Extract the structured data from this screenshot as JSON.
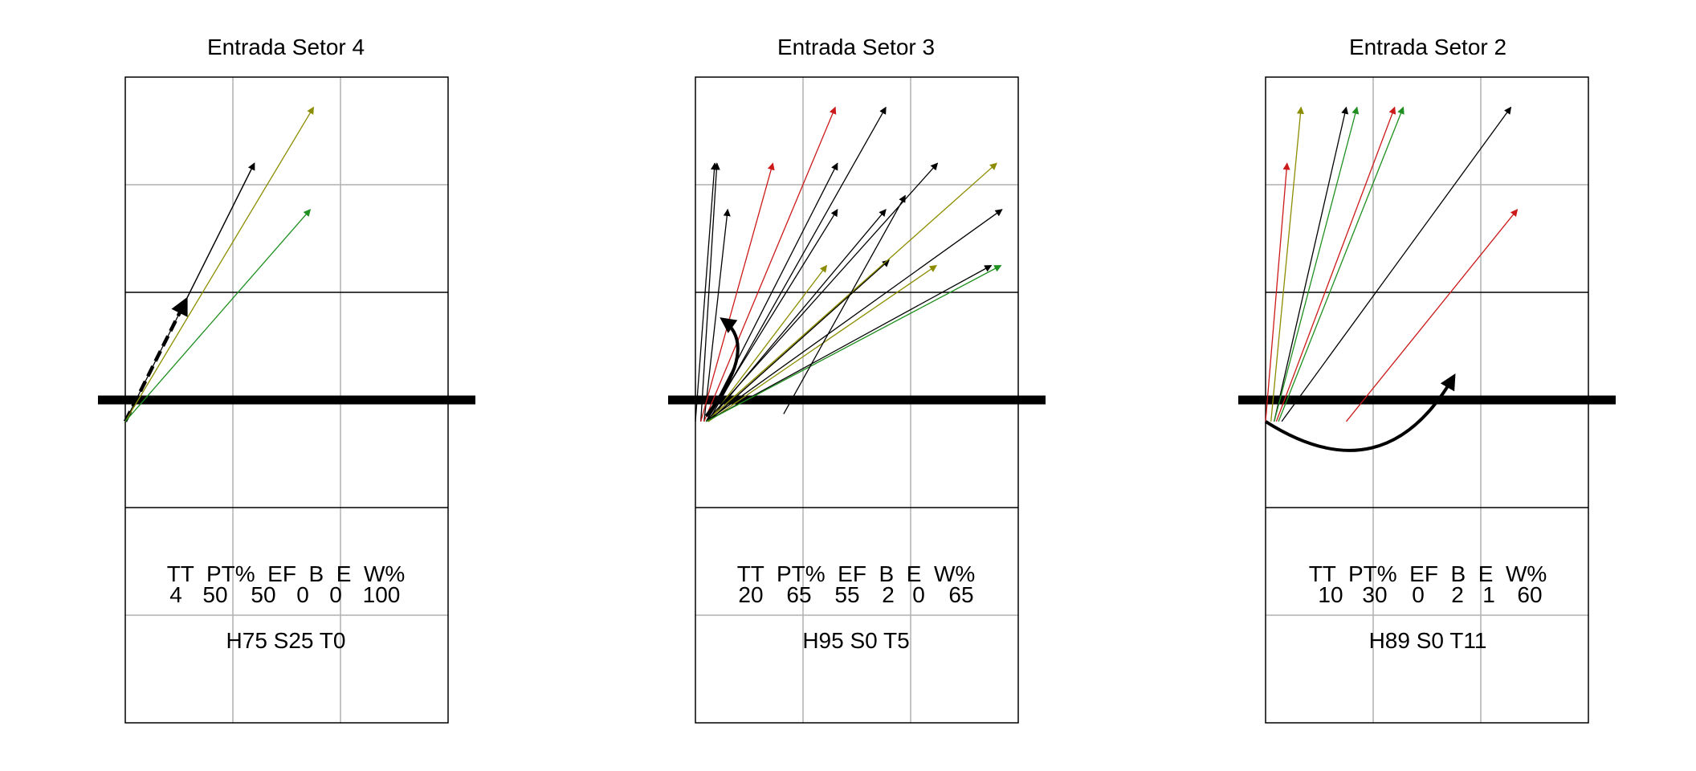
{
  "colors": {
    "black": "#000000",
    "red": "#cc1a1a",
    "olive": "#8c8c00",
    "green": "#1f8f1f",
    "grid": "#b0b0b0"
  },
  "panels": [
    {
      "title": "Entrada Setor 4",
      "stats_header": "TT  PT%  EF  B  E  W%",
      "stats_values": [
        "4",
        "50",
        "50",
        "0",
        "0",
        "100"
      ],
      "summary": "H75 S25 T0",
      "arrows": [
        {
          "x1": 0.0,
          "y1": -0.2,
          "x2": 1.2,
          "y2": 2.2,
          "color": "black",
          "style": "dashed"
        },
        {
          "x1": 0.0,
          "y1": -0.2,
          "x2": 1.2,
          "y2": 2.2,
          "color": "black",
          "style": "thin",
          "from_dash_end": true
        },
        {
          "x1": 0.0,
          "y1": -0.2,
          "x2": 1.2,
          "y2": 2.2,
          "color": "black",
          "style": "thin"
        },
        {
          "x1": 0.0,
          "y1": -0.2,
          "x2": 1.75,
          "y2": 2.72,
          "color": "olive",
          "style": "thin"
        },
        {
          "x1": 0.0,
          "y1": -0.2,
          "x2": 1.72,
          "y2": 1.77,
          "color": "green",
          "style": "thin"
        }
      ],
      "curve": null
    },
    {
      "title": "Entrada Setor 3",
      "stats_header": "TT  PT%  EF  B  E  W%",
      "stats_values": [
        "20",
        "65",
        "55",
        "2",
        "0",
        "65"
      ],
      "summary": "H95 S0 T5",
      "arrows": [
        {
          "x1": 0.0,
          "y1": -0.2,
          "x2": 0.18,
          "y2": 2.2,
          "color": "black",
          "style": "thin"
        },
        {
          "x1": 0.05,
          "y1": -0.2,
          "x2": 0.2,
          "y2": 2.2,
          "color": "black",
          "style": "thin"
        },
        {
          "x1": 0.08,
          "y1": -0.2,
          "x2": 0.3,
          "y2": 1.77,
          "color": "black",
          "style": "thin"
        },
        {
          "x1": 0.05,
          "y1": -0.2,
          "x2": 0.72,
          "y2": 2.2,
          "color": "red",
          "style": "thin"
        },
        {
          "x1": 0.08,
          "y1": -0.2,
          "x2": 1.3,
          "y2": 2.72,
          "color": "red",
          "style": "thin"
        },
        {
          "x1": 0.1,
          "y1": -0.2,
          "x2": 1.32,
          "y2": 2.2,
          "color": "black",
          "style": "thin"
        },
        {
          "x1": 0.1,
          "y1": -0.2,
          "x2": 1.32,
          "y2": 1.77,
          "color": "black",
          "style": "thin"
        },
        {
          "x1": 0.12,
          "y1": -0.2,
          "x2": 1.77,
          "y2": 2.72,
          "color": "black",
          "style": "thin"
        },
        {
          "x1": 0.12,
          "y1": -0.2,
          "x2": 1.77,
          "y2": 1.77,
          "color": "black",
          "style": "thin"
        },
        {
          "x1": 0.12,
          "y1": -0.2,
          "x2": 1.22,
          "y2": 1.25,
          "color": "olive",
          "style": "thin"
        },
        {
          "x1": 0.12,
          "y1": -0.2,
          "x2": 1.8,
          "y2": 1.3,
          "color": "olive",
          "style": "thin"
        },
        {
          "x1": 0.12,
          "y1": -0.2,
          "x2": 1.8,
          "y2": 1.3,
          "color": "black",
          "style": "thin"
        },
        {
          "x1": 0.12,
          "y1": -0.2,
          "x2": 2.24,
          "y2": 1.25,
          "color": "olive",
          "style": "thin"
        },
        {
          "x1": 0.1,
          "y1": -0.2,
          "x2": 2.8,
          "y2": 2.2,
          "color": "olive",
          "style": "thin"
        },
        {
          "x1": 0.1,
          "y1": -0.2,
          "x2": 2.25,
          "y2": 2.2,
          "color": "black",
          "style": "thin"
        },
        {
          "x1": 0.1,
          "y1": -0.2,
          "x2": 2.85,
          "y2": 1.77,
          "color": "black",
          "style": "thin"
        },
        {
          "x1": 0.1,
          "y1": -0.2,
          "x2": 2.75,
          "y2": 1.25,
          "color": "black",
          "style": "thin"
        },
        {
          "x1": 0.1,
          "y1": -0.2,
          "x2": 2.84,
          "y2": 1.25,
          "color": "green",
          "style": "thin"
        },
        {
          "x1": 0.82,
          "y1": -0.13,
          "x2": 1.95,
          "y2": 1.9,
          "color": "black",
          "style": "thin"
        }
      ],
      "curve": {
        "x1": 0.1,
        "y1": -0.15,
        "cx": 0.6,
        "cy": 0.5,
        "x2": 0.25,
        "y2": 0.75
      }
    },
    {
      "title": "Entrada Setor 2",
      "stats_header": "TT  PT%  EF  B  E  W%",
      "stats_values": [
        "10",
        "30",
        "0",
        "2",
        "1",
        "60"
      ],
      "summary": "H89 S0 T11",
      "arrows": [
        {
          "x1": 0.0,
          "y1": -0.2,
          "x2": 0.2,
          "y2": 2.2,
          "color": "red",
          "style": "thin"
        },
        {
          "x1": 0.05,
          "y1": -0.2,
          "x2": 0.33,
          "y2": 2.72,
          "color": "olive",
          "style": "thin"
        },
        {
          "x1": 0.08,
          "y1": -0.2,
          "x2": 0.75,
          "y2": 2.72,
          "color": "black",
          "style": "thin"
        },
        {
          "x1": 0.08,
          "y1": -0.2,
          "x2": 0.85,
          "y2": 2.72,
          "color": "green",
          "style": "thin"
        },
        {
          "x1": 0.1,
          "y1": -0.2,
          "x2": 1.2,
          "y2": 2.72,
          "color": "red",
          "style": "thin"
        },
        {
          "x1": 0.12,
          "y1": -0.2,
          "x2": 1.28,
          "y2": 2.72,
          "color": "green",
          "style": "thin"
        },
        {
          "x1": 0.15,
          "y1": -0.2,
          "x2": 2.28,
          "y2": 2.72,
          "color": "black",
          "style": "thin"
        },
        {
          "x1": 0.75,
          "y1": -0.2,
          "x2": 2.34,
          "y2": 1.77,
          "color": "red",
          "style": "thin"
        }
      ],
      "curve": {
        "x1": 0.0,
        "y1": -0.2,
        "cx": 1.1,
        "cy": -0.9,
        "x2": 1.75,
        "y2": 0.22
      }
    }
  ]
}
